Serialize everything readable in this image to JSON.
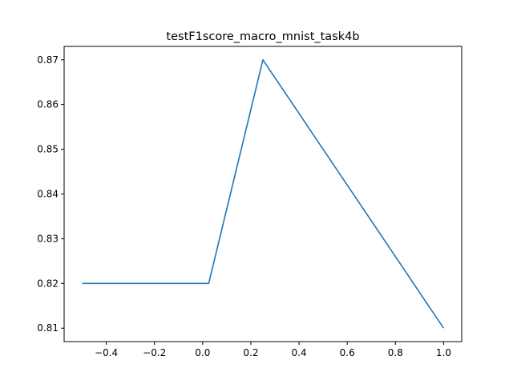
{
  "chart_data": {
    "type": "line",
    "title": "testF1score_macro_mnist_task4b",
    "xlabel": "",
    "ylabel": "",
    "xlim": [
      -0.575,
      1.075
    ],
    "ylim": [
      0.807,
      0.873
    ],
    "x_ticks": [
      -0.4,
      -0.2,
      0.0,
      0.2,
      0.4,
      0.6,
      0.8,
      1.0
    ],
    "x_tick_labels": [
      "−0.4",
      "−0.2",
      "0.0",
      "0.2",
      "0.4",
      "0.6",
      "0.8",
      "1.0"
    ],
    "y_ticks": [
      0.81,
      0.82,
      0.83,
      0.84,
      0.85,
      0.86,
      0.87
    ],
    "y_tick_labels": [
      "0.81",
      "0.82",
      "0.83",
      "0.84",
      "0.85",
      "0.86",
      "0.87"
    ],
    "grid": false,
    "series": [
      {
        "color": "#1f77b4",
        "x": [
          -0.5,
          0.025,
          0.25,
          1.0
        ],
        "y": [
          0.82,
          0.82,
          0.87,
          0.81
        ]
      }
    ]
  }
}
